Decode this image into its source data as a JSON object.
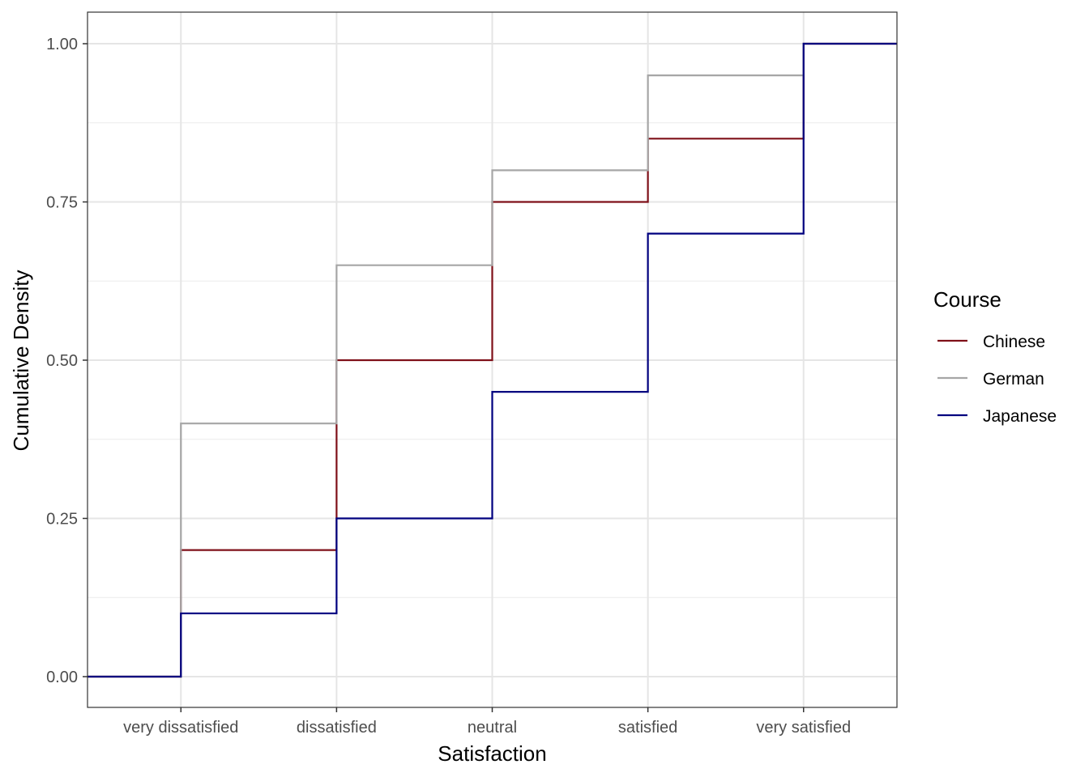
{
  "chart_data": {
    "type": "line",
    "subtype": "step-ecdf",
    "title": "",
    "xlabel": "Satisfaction",
    "ylabel": "Cumulative Density",
    "categories": [
      "very dissatisfied",
      "dissatisfied",
      "neutral",
      "satisfied",
      "very satisfied"
    ],
    "ylim": [
      0,
      1
    ],
    "yticks": [
      0,
      0.25,
      0.5,
      0.75,
      1
    ],
    "ytick_labels": [
      "0.00",
      "0.25",
      "0.50",
      "0.75",
      "1.00"
    ],
    "grid": true,
    "legend": {
      "title": "Course",
      "placement": "right"
    },
    "series": [
      {
        "name": "Chinese",
        "color": "#7f1019",
        "values": [
          0.2,
          0.5,
          0.75,
          0.85,
          1.0
        ]
      },
      {
        "name": "German",
        "color": "#a6a6a6",
        "values": [
          0.4,
          0.65,
          0.8,
          0.95,
          1.0
        ]
      },
      {
        "name": "Japanese",
        "color": "#00007f",
        "values": [
          0.1,
          0.25,
          0.45,
          0.7,
          1.0
        ]
      }
    ]
  }
}
